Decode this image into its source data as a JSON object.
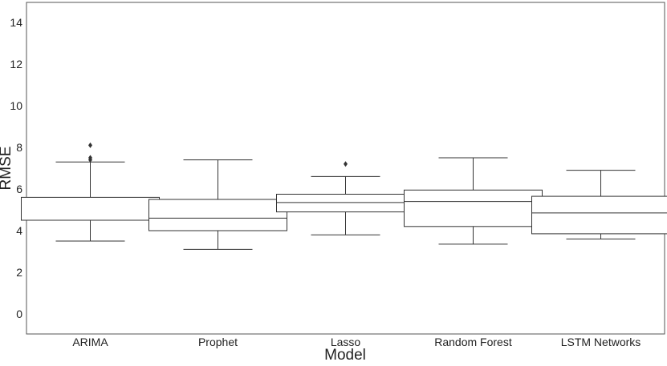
{
  "chart_data": {
    "type": "box",
    "title": "",
    "xlabel": "Model",
    "ylabel": "RMSE",
    "ylim": [
      -1,
      14.8
    ],
    "yticks": [
      0,
      2,
      4,
      6,
      8,
      10,
      12,
      14
    ],
    "grid": false,
    "categories": [
      "ARIMA",
      "Prophet",
      "Lasso",
      "Random Forest",
      "LSTM Networks"
    ],
    "boxes": [
      {
        "category": "ARIMA",
        "whisker_low": 3.5,
        "q1": 4.5,
        "median": 4.5,
        "q3": 5.6,
        "whisker_high": 7.3,
        "outliers": [
          7.4,
          7.5,
          8.1
        ]
      },
      {
        "category": "Prophet",
        "whisker_low": 3.1,
        "q1": 4.0,
        "median": 4.6,
        "q3": 5.5,
        "whisker_high": 7.4,
        "outliers": []
      },
      {
        "category": "Lasso",
        "whisker_low": 3.8,
        "q1": 4.9,
        "median": 5.35,
        "q3": 5.75,
        "whisker_high": 6.6,
        "outliers": [
          7.2
        ]
      },
      {
        "category": "Random Forest",
        "whisker_low": 3.35,
        "q1": 4.2,
        "median": 5.4,
        "q3": 5.95,
        "whisker_high": 7.5,
        "outliers": []
      },
      {
        "category": "LSTM Networks",
        "whisker_low": 3.6,
        "q1": 3.85,
        "median": 4.85,
        "q3": 5.65,
        "whisker_high": 6.9,
        "outliers": []
      }
    ],
    "colors": {
      "box_stroke": "#333333",
      "box_fill": "#ffffff",
      "outlier": "#333333",
      "frame": "#555555"
    }
  }
}
